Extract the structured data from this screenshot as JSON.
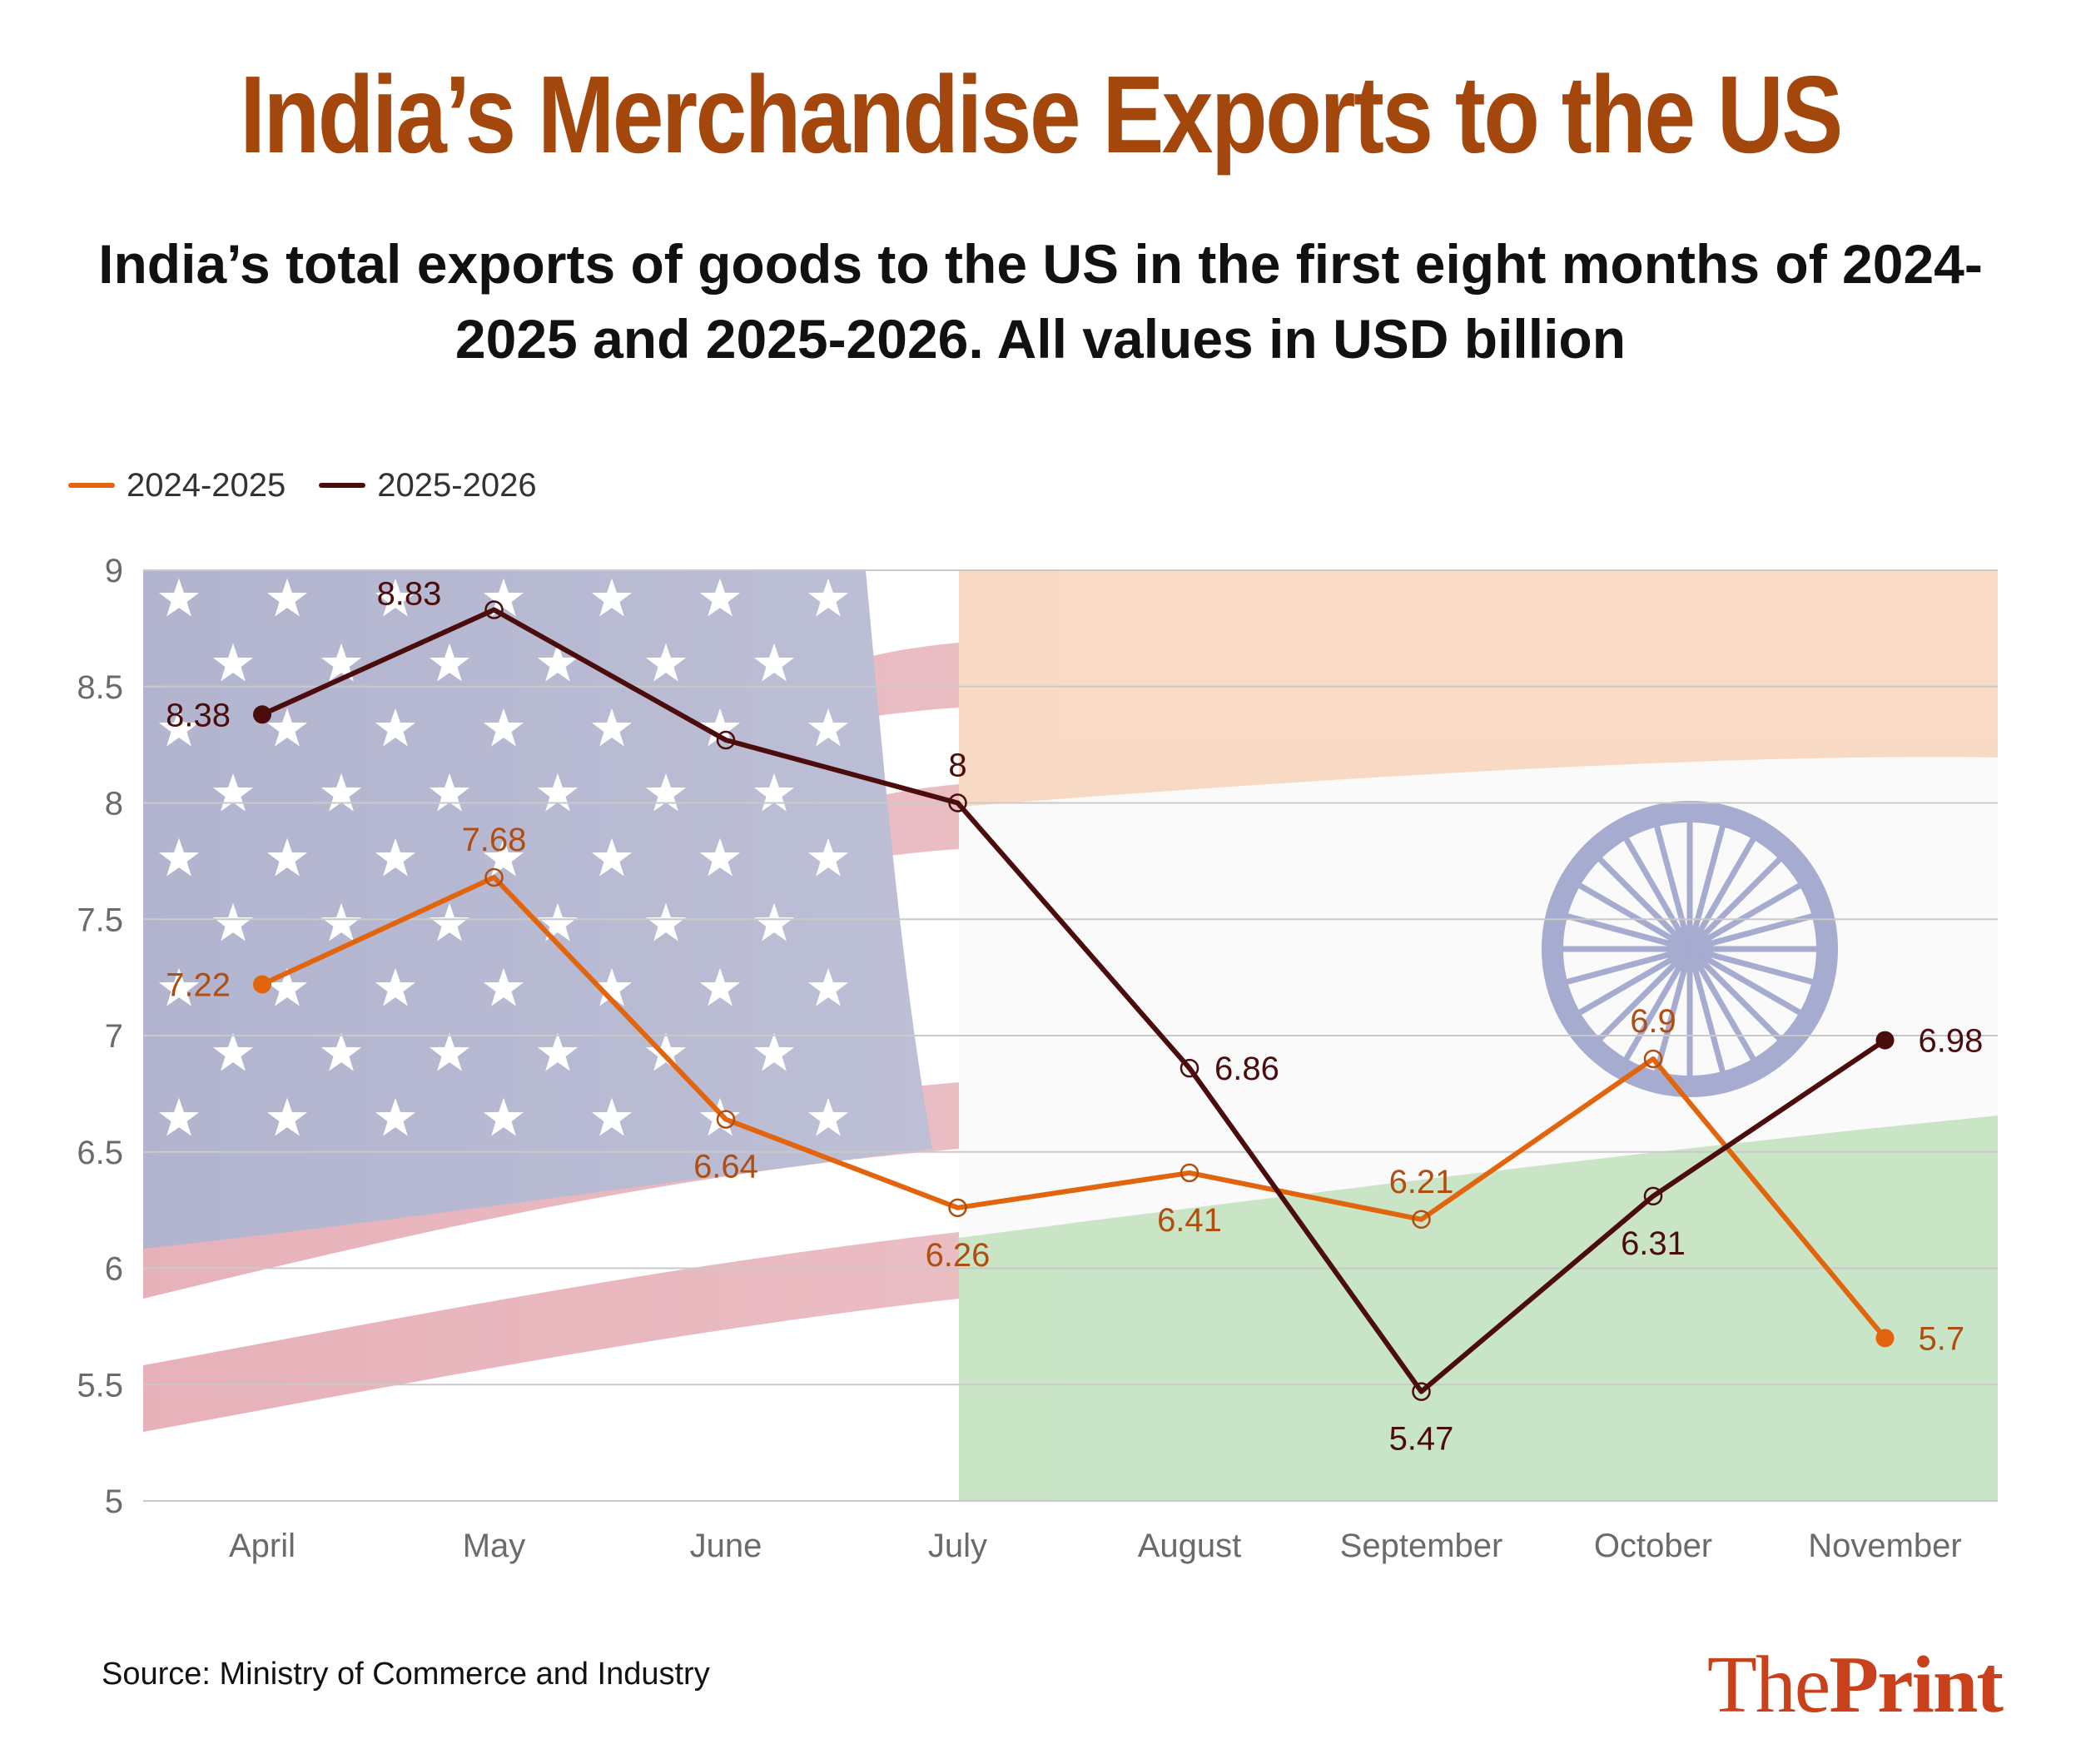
{
  "title": "India’s Merchandise Exports to the US",
  "subtitle": "India’s total exports of goods to the US in the first eight months of 2024-2025 and 2025-2026. All values in USD billion",
  "source": "Source: Ministry of Commerce and Industry",
  "logo": {
    "light": "The",
    "bold": "Print"
  },
  "colors": {
    "title": "#a3470d",
    "series_2024": "#e2640c",
    "series_2024_label": "#b04e10",
    "series_2025": "#4b0c0c",
    "series_2025_label": "#4b0c0c",
    "gridline": "#c9c9c9"
  },
  "chart_data": {
    "type": "line",
    "title": "India’s Merchandise Exports to the US",
    "xlabel": "",
    "ylabel": "USD billion",
    "ylim": [
      5,
      9
    ],
    "yticks": [
      "9",
      "8.5",
      "8",
      "7.5",
      "7",
      "6.5",
      "6",
      "5.5",
      "5"
    ],
    "grid": true,
    "legend": "top-left",
    "categories": [
      "April",
      "May",
      "June",
      "July",
      "August",
      "September",
      "October",
      "November"
    ],
    "series": [
      {
        "name": "2024-2025",
        "values": [
          7.22,
          7.68,
          6.64,
          6.26,
          6.41,
          6.21,
          6.9,
          5.7
        ],
        "labels": [
          "7.22",
          "7.68",
          "6.64",
          "6.26",
          "6.41",
          "6.21",
          "6.9",
          "5.7"
        ]
      },
      {
        "name": "2025-2026",
        "values": [
          8.38,
          8.83,
          8.27,
          8.0,
          6.86,
          5.47,
          6.31,
          6.98
        ],
        "labels": [
          "8.38",
          "8.83",
          "",
          "8",
          "6.86",
          "5.47",
          "6.31",
          "6.98"
        ]
      }
    ]
  }
}
